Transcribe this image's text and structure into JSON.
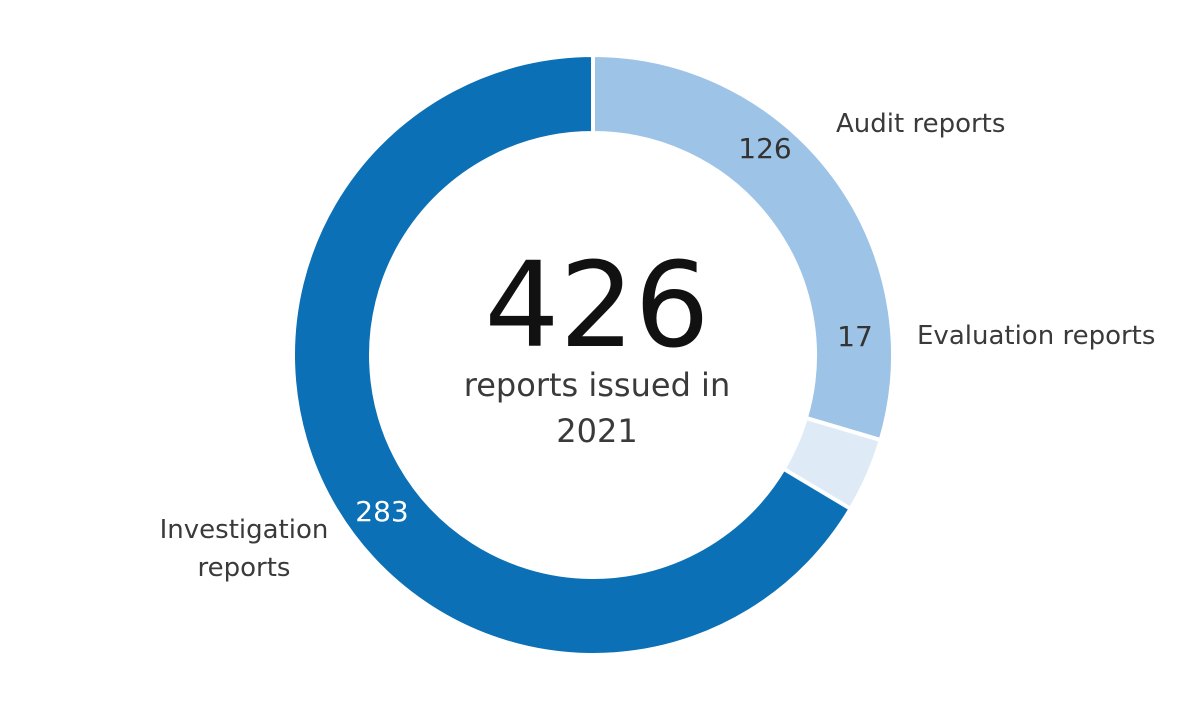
{
  "chart_data": {
    "type": "pie",
    "categories": [
      "Audit reports",
      "Evaluation reports",
      "Investigation reports"
    ],
    "values": [
      126,
      17,
      283
    ],
    "colors": [
      "#9dc3e6",
      "#deebf7",
      "#0b70b5"
    ],
    "total": 426,
    "center_text": "reports issued in 2021"
  }
}
